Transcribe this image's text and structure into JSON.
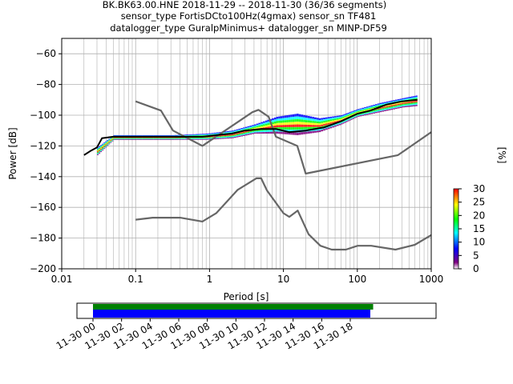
{
  "title_lines": [
    "BK.BK63.00.HNE   2018-11-29 -- 2018-11-30  (36/36 segments)",
    "sensor_type FortisDCto100Hz(4gmax) sensor_sn TF481",
    "datalogger_type GuralpMinimus+ datalogger_sn MINP-DF59"
  ],
  "colors": {
    "noise_models": "#666666",
    "mean_curve": "#000000",
    "coverage_top": "#008000",
    "coverage_bottom": "#0000ff",
    "colormap": [
      "#ffffff",
      "#800080",
      "#0000ff",
      "#00ffff",
      "#00ff00",
      "#ffff00",
      "#ff0000"
    ]
  },
  "chart_data": {
    "type": "heatmap",
    "xlabel": "Period [s]",
    "ylabel": "Power [dB]",
    "xscale": "log",
    "xlim": [
      0.01,
      1000
    ],
    "ylim": [
      -200,
      -50
    ],
    "x_ticks": [
      {
        "v": 0.01,
        "label": "0.01"
      },
      {
        "v": 0.1,
        "label": "0.1"
      },
      {
        "v": 1,
        "label": "1"
      },
      {
        "v": 10,
        "label": "10"
      },
      {
        "v": 100,
        "label": "100"
      },
      {
        "v": 1000,
        "label": "1000"
      }
    ],
    "y_ticks": [
      -60,
      -80,
      -100,
      -120,
      -140,
      -160,
      -180,
      -200
    ],
    "grid": true,
    "colorbar": {
      "label": "[%]",
      "min": 0,
      "max": 30,
      "ticks": [
        0,
        5,
        10,
        15,
        20,
        25,
        30
      ]
    },
    "mean_psd": [
      [
        0.02,
        -126
      ],
      [
        0.025,
        -123
      ],
      [
        0.03,
        -121
      ],
      [
        0.035,
        -115
      ],
      [
        0.05,
        -114
      ],
      [
        0.1,
        -114
      ],
      [
        0.3,
        -114
      ],
      [
        0.5,
        -114
      ],
      [
        0.8,
        -114
      ],
      [
        1.2,
        -113
      ],
      [
        2,
        -112
      ],
      [
        3,
        -110
      ],
      [
        5,
        -109
      ],
      [
        8,
        -109
      ],
      [
        12,
        -111
      ],
      [
        20,
        -110
      ],
      [
        35,
        -108
      ],
      [
        60,
        -104
      ],
      [
        100,
        -99
      ],
      [
        150,
        -97
      ],
      [
        250,
        -93
      ],
      [
        400,
        -91
      ],
      [
        650,
        -90
      ]
    ],
    "new_high_noise_model": [
      [
        0.1,
        -91
      ],
      [
        0.22,
        -97
      ],
      [
        0.32,
        -110
      ],
      [
        0.8,
        -120
      ],
      [
        3.8,
        -98
      ],
      [
        4.6,
        -96.5
      ],
      [
        6.3,
        -101
      ],
      [
        7.9,
        -114
      ],
      [
        15.4,
        -120
      ],
      [
        20,
        -138
      ],
      [
        354.8,
        -126
      ],
      [
        1000,
        -111
      ]
    ],
    "new_low_noise_model": [
      [
        0.1,
        -168
      ],
      [
        0.17,
        -166.7
      ],
      [
        0.4,
        -166.7
      ],
      [
        0.8,
        -169.2
      ],
      [
        1.24,
        -163.7
      ],
      [
        2.4,
        -148.6
      ],
      [
        4.3,
        -141.1
      ],
      [
        5,
        -141.1
      ],
      [
        6,
        -149
      ],
      [
        10,
        -163.8
      ],
      [
        12,
        -166.2
      ],
      [
        15.6,
        -162.1
      ],
      [
        21.9,
        -177.5
      ],
      [
        31.6,
        -185
      ],
      [
        45,
        -187.5
      ],
      [
        70,
        -187.5
      ],
      [
        101,
        -185
      ],
      [
        154,
        -185
      ],
      [
        328,
        -187.5
      ],
      [
        600,
        -184.4
      ],
      [
        1000,
        -178
      ]
    ],
    "spread_columns": [
      [
        0.03,
        -126,
        -121
      ],
      [
        0.05,
        -116,
        -113
      ],
      [
        0.3,
        -116,
        -113
      ],
      [
        0.9,
        -116,
        -112
      ],
      [
        2,
        -115,
        -110
      ],
      [
        4,
        -112,
        -106
      ],
      [
        8,
        -112,
        -101
      ],
      [
        15,
        -113,
        -99
      ],
      [
        30,
        -111,
        -102
      ],
      [
        60,
        -106,
        -100
      ],
      [
        100,
        -101,
        -96
      ],
      [
        200,
        -98,
        -92
      ],
      [
        400,
        -95,
        -89
      ],
      [
        650,
        -94,
        -87
      ]
    ],
    "coverage": {
      "x_ticks": [
        "11-30 00",
        "11-30 02",
        "11-30 04",
        "11-30 06",
        "11-30 08",
        "11-30 10",
        "11-30 12",
        "11-30 14",
        "11-30 16",
        "11-30 18"
      ],
      "start_hours": 0,
      "end_hours": 24,
      "data_bar_end_hours": 19.6,
      "gap_bar_end_hours": 19.4
    }
  }
}
